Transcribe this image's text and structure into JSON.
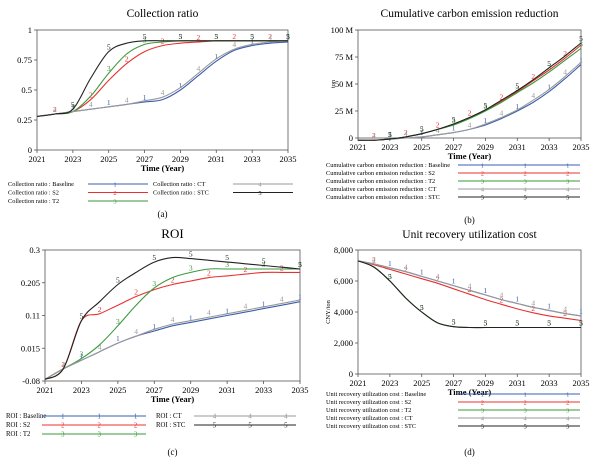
{
  "chart_data": [
    {
      "type": "line",
      "panel_label": "(a)",
      "title": "Collection ratio",
      "xlabel": "Time (Year)",
      "ylabel": "",
      "x": [
        2021,
        2022,
        2023,
        2024,
        2025,
        2026,
        2027,
        2028,
        2029,
        2030,
        2031,
        2032,
        2033,
        2034,
        2035
      ],
      "xticks": [
        "2021",
        "2023",
        "2025",
        "2027",
        "2029",
        "2031",
        "2033",
        "2035"
      ],
      "yticks": [
        "0",
        "0.25",
        "0.5",
        "0.75",
        "1"
      ],
      "ylim": [
        0,
        1
      ],
      "legend_layout": "three-column-bottom",
      "series": [
        {
          "name": "Collection ratio : Baseline",
          "marker": "1",
          "color": "#3a5fb0",
          "values": [
            0.28,
            0.3,
            0.32,
            0.34,
            0.36,
            0.38,
            0.4,
            0.42,
            0.5,
            0.62,
            0.74,
            0.83,
            0.87,
            0.89,
            0.9
          ]
        },
        {
          "name": "Collection ratio : S2",
          "marker": "2",
          "color": "#e83030",
          "values": [
            0.28,
            0.3,
            0.32,
            0.42,
            0.58,
            0.72,
            0.82,
            0.87,
            0.89,
            0.9,
            0.91,
            0.91,
            0.91,
            0.91,
            0.91
          ]
        },
        {
          "name": "Collection ratio : T2",
          "marker": "3",
          "color": "#3a9a3a",
          "values": [
            0.28,
            0.3,
            0.32,
            0.45,
            0.64,
            0.8,
            0.88,
            0.9,
            0.91,
            0.91,
            0.91,
            0.91,
            0.91,
            0.91,
            0.91
          ]
        },
        {
          "name": "Collection ratio : CT",
          "marker": "4",
          "color": "#999999",
          "values": [
            0.28,
            0.3,
            0.32,
            0.34,
            0.36,
            0.38,
            0.41,
            0.44,
            0.52,
            0.64,
            0.76,
            0.84,
            0.88,
            0.9,
            0.91
          ]
        },
        {
          "name": "Collection ratio : STC",
          "marker": "5",
          "color": "#222222",
          "values": [
            0.28,
            0.3,
            0.34,
            0.6,
            0.82,
            0.89,
            0.91,
            0.91,
            0.91,
            0.91,
            0.91,
            0.91,
            0.91,
            0.91,
            0.91
          ]
        }
      ]
    },
    {
      "type": "line",
      "panel_label": "(b)",
      "title": "Cumulative carbon emission reduction",
      "xlabel": "Time (Year)",
      "ylabel": "ton",
      "x": [
        2021,
        2022,
        2023,
        2024,
        2025,
        2026,
        2027,
        2028,
        2029,
        2030,
        2031,
        2032,
        2033,
        2034,
        2035
      ],
      "xticks": [
        "2021",
        "2023",
        "2025",
        "2027",
        "2029",
        "2031",
        "2033",
        "2035"
      ],
      "yticks": [
        "0",
        "25 M",
        "50 M",
        "75 M",
        "100 M"
      ],
      "ylim": [
        0,
        100
      ],
      "legend_layout": "one-column-bottom",
      "series": [
        {
          "name": "Cumulative carbon emission reduction : Baseline",
          "marker": "1",
          "color": "#3a5fb0",
          "values": [
            -2,
            -2,
            -1,
            0,
            1,
            3,
            5,
            8,
            12,
            18,
            25,
            33,
            43,
            55,
            68
          ]
        },
        {
          "name": "Cumulative carbon emission reduction : S2",
          "marker": "2",
          "color": "#e83030",
          "values": [
            -2,
            -2,
            -1,
            1,
            4,
            8,
            13,
            19,
            26,
            34,
            43,
            53,
            63,
            74,
            86
          ]
        },
        {
          "name": "Cumulative carbon emission reduction : T2",
          "marker": "3",
          "color": "#3a9a3a",
          "values": [
            -2,
            -2,
            -1,
            1,
            4,
            8,
            12,
            18,
            25,
            33,
            42,
            51,
            61,
            72,
            83
          ]
        },
        {
          "name": "Cumulative carbon emission reduction : CT",
          "marker": "4",
          "color": "#999999",
          "values": [
            -2,
            -2,
            -1,
            0,
            1,
            3,
            5,
            8,
            13,
            19,
            26,
            35,
            45,
            57,
            70
          ]
        },
        {
          "name": "Cumulative carbon emission reduction : STC",
          "marker": "5",
          "color": "#222222",
          "values": [
            -2,
            -2,
            -1,
            1,
            4,
            8,
            13,
            19,
            26,
            35,
            44,
            54,
            65,
            76,
            88
          ]
        }
      ]
    },
    {
      "type": "line",
      "panel_label": "(c)",
      "title": "ROI",
      "xlabel": "Time (Year)",
      "ylabel": "",
      "x": [
        2021,
        2022,
        2023,
        2024,
        2025,
        2026,
        2027,
        2028,
        2029,
        2030,
        2031,
        2032,
        2033,
        2034,
        2035
      ],
      "xticks": [
        "2021",
        "2023",
        "2025",
        "2027",
        "2029",
        "2031",
        "2033",
        "2035"
      ],
      "yticks": [
        "-0.08",
        "0.015",
        "0.11",
        "0.205",
        "0.3"
      ],
      "ylim": [
        -0.08,
        0.3
      ],
      "legend_layout": "two-column-bottom",
      "series": [
        {
          "name": "ROI : Baseline",
          "marker": "1",
          "color": "#3a5fb0",
          "values": [
            -0.075,
            -0.045,
            -0.02,
            0.005,
            0.03,
            0.05,
            0.065,
            0.08,
            0.09,
            0.1,
            0.11,
            0.12,
            0.13,
            0.14,
            0.15
          ]
        },
        {
          "name": "ROI : S2",
          "marker": "2",
          "color": "#e83030",
          "values": [
            -0.075,
            -0.045,
            0.095,
            0.115,
            0.14,
            0.165,
            0.185,
            0.2,
            0.21,
            0.22,
            0.225,
            0.23,
            0.235,
            0.235,
            0.235
          ]
        },
        {
          "name": "ROI : T2",
          "marker": "3",
          "color": "#3a9a3a",
          "values": [
            -0.075,
            -0.045,
            -0.015,
            0.025,
            0.08,
            0.14,
            0.19,
            0.22,
            0.235,
            0.245,
            0.245,
            0.245,
            0.245,
            0.245,
            0.245
          ]
        },
        {
          "name": "ROI : CT",
          "marker": "4",
          "color": "#999999",
          "values": [
            -0.075,
            -0.045,
            -0.02,
            0.005,
            0.03,
            0.05,
            0.07,
            0.085,
            0.095,
            0.105,
            0.115,
            0.125,
            0.135,
            0.145,
            0.155
          ]
        },
        {
          "name": "ROI : STC",
          "marker": "5",
          "color": "#222222",
          "values": [
            -0.075,
            -0.045,
            0.095,
            0.15,
            0.2,
            0.235,
            0.265,
            0.278,
            0.275,
            0.27,
            0.265,
            0.26,
            0.255,
            0.25,
            0.245
          ]
        }
      ]
    },
    {
      "type": "line",
      "panel_label": "(d)",
      "title": "Unit recovery utilization cost",
      "xlabel": "Time (Year)",
      "ylabel": "CNY/ton",
      "x": [
        2021,
        2022,
        2023,
        2024,
        2025,
        2026,
        2027,
        2028,
        2029,
        2030,
        2031,
        2032,
        2033,
        2034,
        2035
      ],
      "xticks": [
        "2021",
        "2023",
        "2025",
        "2027",
        "2029",
        "2031",
        "2033",
        "2035"
      ],
      "yticks": [
        "0",
        "2,000",
        "4,000",
        "6,000",
        "8,000"
      ],
      "ylim": [
        0,
        8000
      ],
      "legend_layout": "one-column-bottom",
      "series": [
        {
          "name": "Unit recovery utilization cost : Baseline",
          "marker": "1",
          "color": "#3a5fb0",
          "values": [
            7300,
            7100,
            6850,
            6600,
            6300,
            6000,
            5700,
            5400,
            5100,
            4800,
            4550,
            4300,
            4100,
            3900,
            3750
          ]
        },
        {
          "name": "Unit recovery utilization cost : S2",
          "marker": "2",
          "color": "#e83030",
          "values": [
            7300,
            7050,
            6750,
            6450,
            6150,
            5850,
            5500,
            5150,
            4800,
            4500,
            4200,
            3950,
            3750,
            3600,
            3450
          ]
        },
        {
          "name": "Unit recovery utilization cost : T2",
          "marker": "3",
          "color": "#3a9a3a",
          "values": [
            7300,
            6900,
            6000,
            4900,
            4000,
            3300,
            3050,
            3000,
            3000,
            3000,
            3000,
            3000,
            3000,
            3000,
            3000
          ]
        },
        {
          "name": "Unit recovery utilization cost : CT",
          "marker": "4",
          "color": "#999999",
          "values": [
            7300,
            7100,
            6850,
            6600,
            6300,
            6000,
            5700,
            5400,
            5100,
            4800,
            4550,
            4300,
            4100,
            3900,
            3750
          ]
        },
        {
          "name": "Unit recovery utilization cost : STC",
          "marker": "5",
          "color": "#222222",
          "values": [
            7300,
            6900,
            6000,
            4900,
            4000,
            3300,
            3050,
            3000,
            3000,
            3000,
            3000,
            3000,
            3000,
            3000,
            3000
          ]
        }
      ]
    }
  ]
}
